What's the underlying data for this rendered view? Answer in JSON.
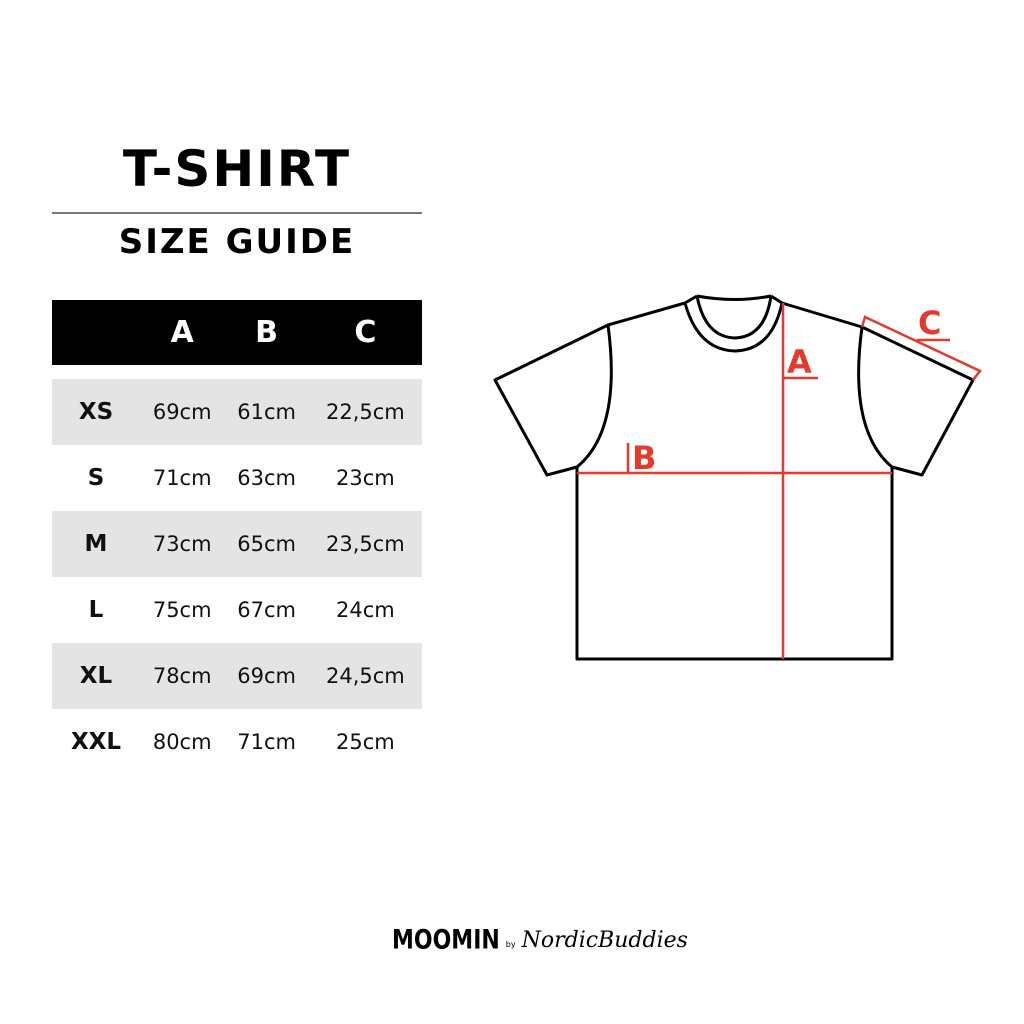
{
  "title": "T-SHIRT",
  "subtitle": "SIZE GUIDE",
  "table": {
    "headers": [
      "",
      "A",
      "B",
      "C"
    ],
    "rows": [
      [
        "XS",
        "69cm",
        "61cm",
        "22,5cm"
      ],
      [
        "S",
        "71cm",
        "63cm",
        "23cm"
      ],
      [
        "M",
        "73cm",
        "65cm",
        "23,5cm"
      ],
      [
        "L",
        "75cm",
        "67cm",
        "24cm"
      ],
      [
        "XL",
        "78cm",
        "69cm",
        "24,5cm"
      ],
      [
        "XXL",
        "80cm",
        "71cm",
        "25cm"
      ]
    ]
  },
  "diagram": {
    "labels": {
      "a": "A",
      "b": "B",
      "c": "C"
    },
    "accent": "#e23b2e"
  },
  "logo": {
    "brand": "MOOMIN",
    "by": "by",
    "partner": "NordicBuddies"
  }
}
